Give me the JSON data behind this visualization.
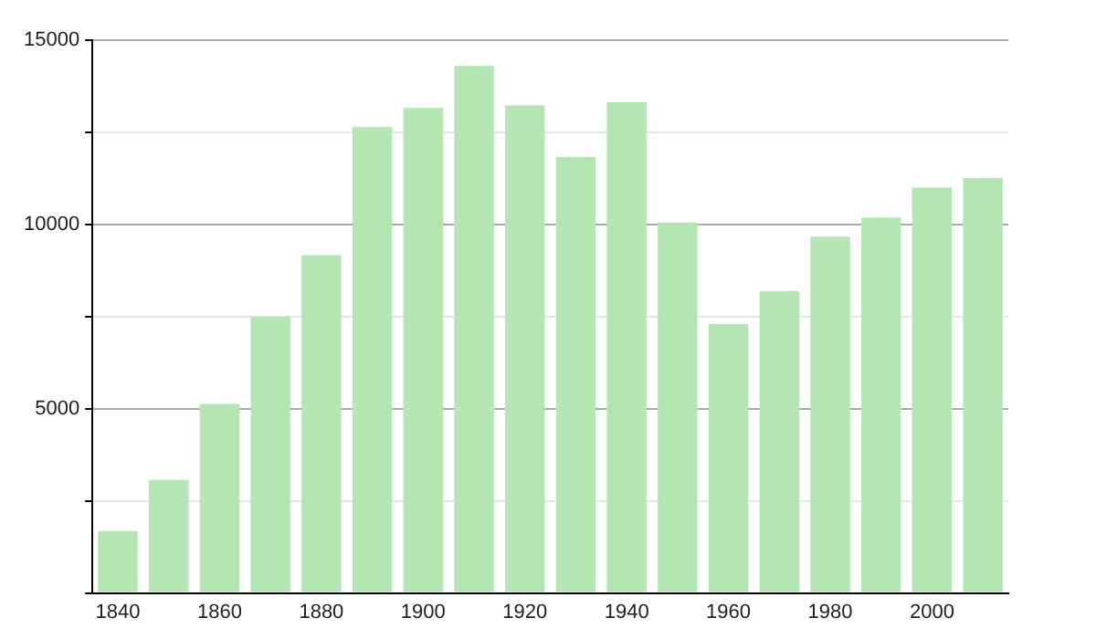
{
  "chart_data": {
    "type": "bar",
    "categories": [
      "1840",
      null,
      "1860",
      null,
      "1880",
      null,
      "1900",
      null,
      "1920",
      null,
      "1940",
      null,
      "1960",
      null,
      "1980",
      null,
      "2000",
      null
    ],
    "values": [
      1680,
      3070,
      5130,
      7500,
      9170,
      12640,
      13160,
      14300,
      13230,
      11830,
      13320,
      10050,
      7300,
      8190,
      9670,
      10190,
      11000,
      11260
    ],
    "color": "#b3e6b3",
    "ylim": [
      0,
      15000
    ],
    "yticks": [
      {
        "value": 0,
        "label": null
      },
      {
        "value": 2500,
        "label": null
      },
      5000,
      {
        "value": 7500,
        "label": null
      },
      10000,
      {
        "value": 12500,
        "label": null
      },
      15000
    ],
    "grid": "y"
  }
}
